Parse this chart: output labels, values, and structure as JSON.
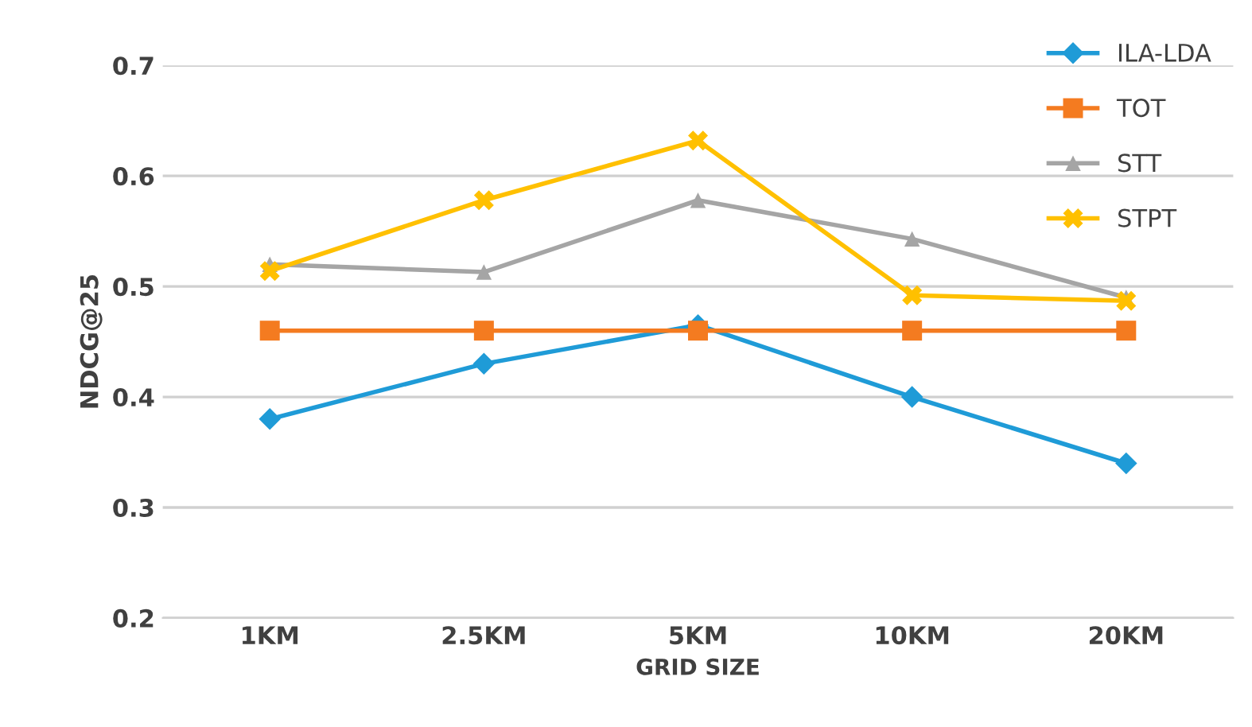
{
  "chart_data": {
    "type": "line",
    "xlabel": "GRID SIZE",
    "ylabel": "NDCG@25",
    "categories": [
      "1KM",
      "2.5KM",
      "5KM",
      "10KM",
      "20KM"
    ],
    "series": [
      {
        "name": "ILA-LDA",
        "color": "#1f9bd7",
        "marker": "diamond",
        "values": [
          0.38,
          0.43,
          0.465,
          0.4,
          0.34
        ]
      },
      {
        "name": "TOT",
        "color": "#f47b20",
        "marker": "square",
        "values": [
          0.46,
          0.46,
          0.46,
          0.46,
          0.46
        ]
      },
      {
        "name": "STT",
        "color": "#a5a5a5",
        "marker": "triangle",
        "values": [
          0.52,
          0.513,
          0.578,
          0.543,
          0.49
        ]
      },
      {
        "name": "STPT",
        "color": "#ffc000",
        "marker": "cross",
        "values": [
          0.514,
          0.578,
          0.632,
          0.492,
          0.487
        ]
      }
    ],
    "ylim": [
      0.2,
      0.7
    ],
    "yticks": [
      0.2,
      0.3,
      0.4,
      0.5,
      0.6,
      0.7
    ],
    "grid": "y",
    "legend": "top right"
  }
}
